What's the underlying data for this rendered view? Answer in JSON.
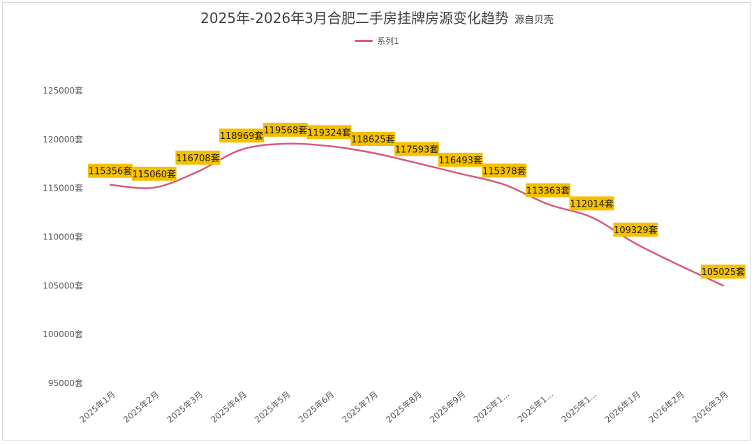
{
  "header": {
    "title": "2025年-2026年3月合肥二手房挂牌房源变化趋势",
    "subtitle": "源自贝壳"
  },
  "legend": {
    "series_name": "系列1"
  },
  "colors": {
    "line": "#d9587b",
    "label_bg": "#f5c000",
    "text": "#595959"
  },
  "chart_data": {
    "type": "line",
    "title": "2025年-2026年3月合肥二手房挂牌房源变化趋势",
    "subtitle": "源自贝壳",
    "xlabel": "",
    "ylabel": "",
    "categories": [
      "2025年1月",
      "2025年2月",
      "2025年3月",
      "2025年4月",
      "2025年5月",
      "2025年6月",
      "2025年7月",
      "2025年8月",
      "2025年9月",
      "2025年1...",
      "2025年1...",
      "2025年1...",
      "2026年1月",
      "2026年2月",
      "2026年3月"
    ],
    "series": [
      {
        "name": "系列1",
        "values": [
          115356,
          115060,
          116708,
          118969,
          119568,
          119324,
          118625,
          117593,
          116493,
          115378,
          113363,
          112014,
          109329,
          null,
          105025
        ],
        "line_values": [
          115356,
          115060,
          116708,
          118969,
          119568,
          119324,
          118625,
          117593,
          116493,
          115378,
          113363,
          112014,
          109329,
          107100,
          105025
        ]
      }
    ],
    "data_labels": [
      "115356套",
      "115060套",
      "116708套",
      "118969套",
      "119568套",
      "119324套",
      "118625套",
      "117593套",
      "116493套",
      "115378套",
      "113363套",
      "112014套",
      "109329套",
      "",
      "105025套"
    ],
    "yticks": [
      95000,
      100000,
      105000,
      110000,
      115000,
      120000,
      125000
    ],
    "ytick_labels": [
      "95000套",
      "100000套",
      "105000套",
      "110000套",
      "115000套",
      "120000套",
      "125000套"
    ],
    "ylim": [
      95000,
      125000
    ],
    "grid": false,
    "legend_position": "top-center",
    "line_smooth": true
  }
}
